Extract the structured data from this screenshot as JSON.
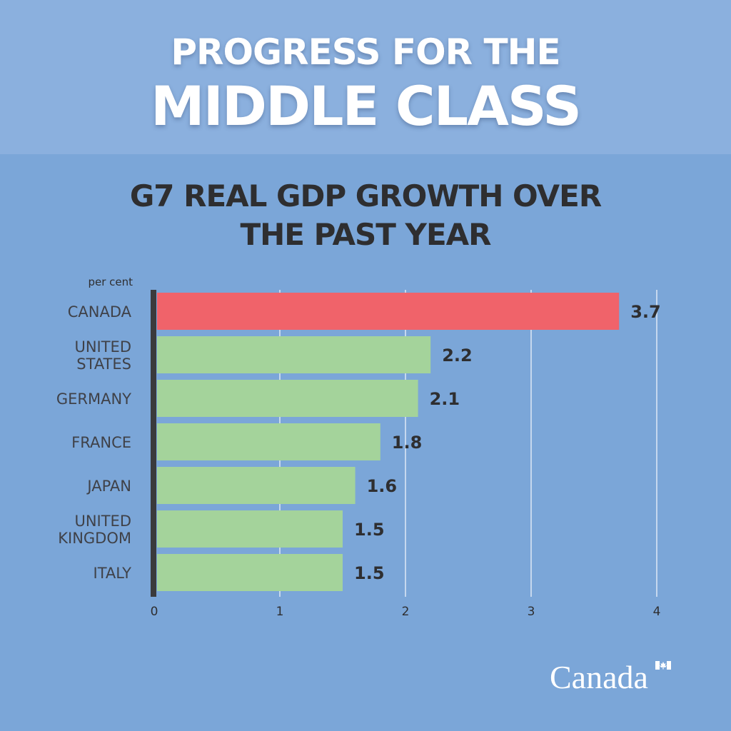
{
  "header": {
    "line1": "PROGRESS FOR THE",
    "line2": "MIDDLE CLASS"
  },
  "chart_data": {
    "type": "bar",
    "orientation": "horizontal",
    "title": "G7 REAL GDP GROWTH OVER THE PAST YEAR",
    "title_lines": [
      "G7 REAL GDP GROWTH OVER",
      "THE PAST YEAR"
    ],
    "unit_label": "per cent",
    "categories": [
      [
        "CANADA"
      ],
      [
        "UNITED",
        "STATES"
      ],
      [
        "GERMANY"
      ],
      [
        "FRANCE"
      ],
      [
        "JAPAN"
      ],
      [
        "UNITED",
        "KINGDOM"
      ],
      [
        "ITALY"
      ]
    ],
    "values": [
      3.7,
      2.2,
      2.1,
      1.8,
      1.6,
      1.5,
      1.5
    ],
    "value_labels": [
      "3.7",
      "2.2",
      "2.1",
      "1.8",
      "1.6",
      "1.5",
      "1.5"
    ],
    "bar_colors": [
      "#f0636a",
      "#a4d39b",
      "#a4d39b",
      "#a4d39b",
      "#a4d39b",
      "#a4d39b",
      "#a4d39b"
    ],
    "xlim": [
      0,
      4
    ],
    "xticks": [
      0,
      1,
      2,
      3,
      4
    ],
    "grid": true,
    "xlabel": "",
    "ylabel": ""
  },
  "branding": {
    "wordmark": "Canada"
  },
  "colors": {
    "background": "#7ba6d8",
    "header_band": "#8bb0de",
    "text_dark": "#2e2e30",
    "axis": "#3a3a3c",
    "grid": "#dfe9f5",
    "flag_red": "#ffffff"
  }
}
